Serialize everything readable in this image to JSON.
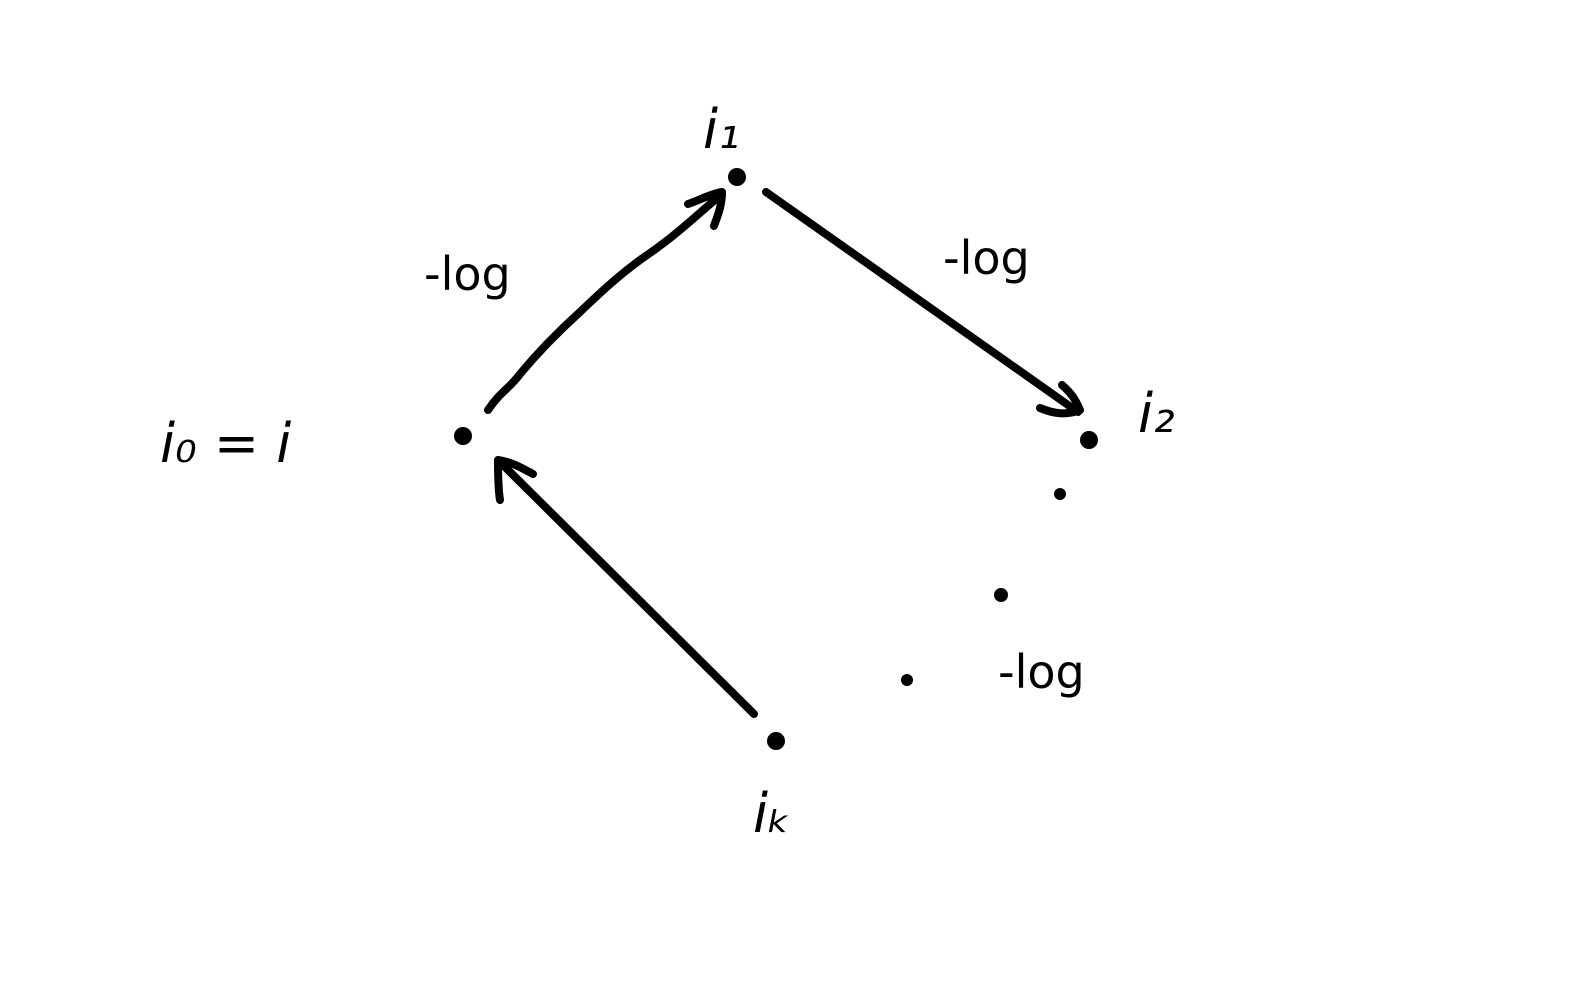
{
  "diagram": {
    "nodes": {
      "i0": {
        "label": "i₀ = i"
      },
      "i1": {
        "label": "i₁"
      },
      "i2": {
        "label": "i₂"
      },
      "ik": {
        "label": "iₖ"
      }
    },
    "edges": {
      "i0_to_i1": {
        "label": "-log"
      },
      "i1_to_i2": {
        "label": "-log"
      },
      "continuation": {
        "label": "-log"
      }
    },
    "colors": {
      "ink": "#000000",
      "background": "#ffffff"
    }
  }
}
